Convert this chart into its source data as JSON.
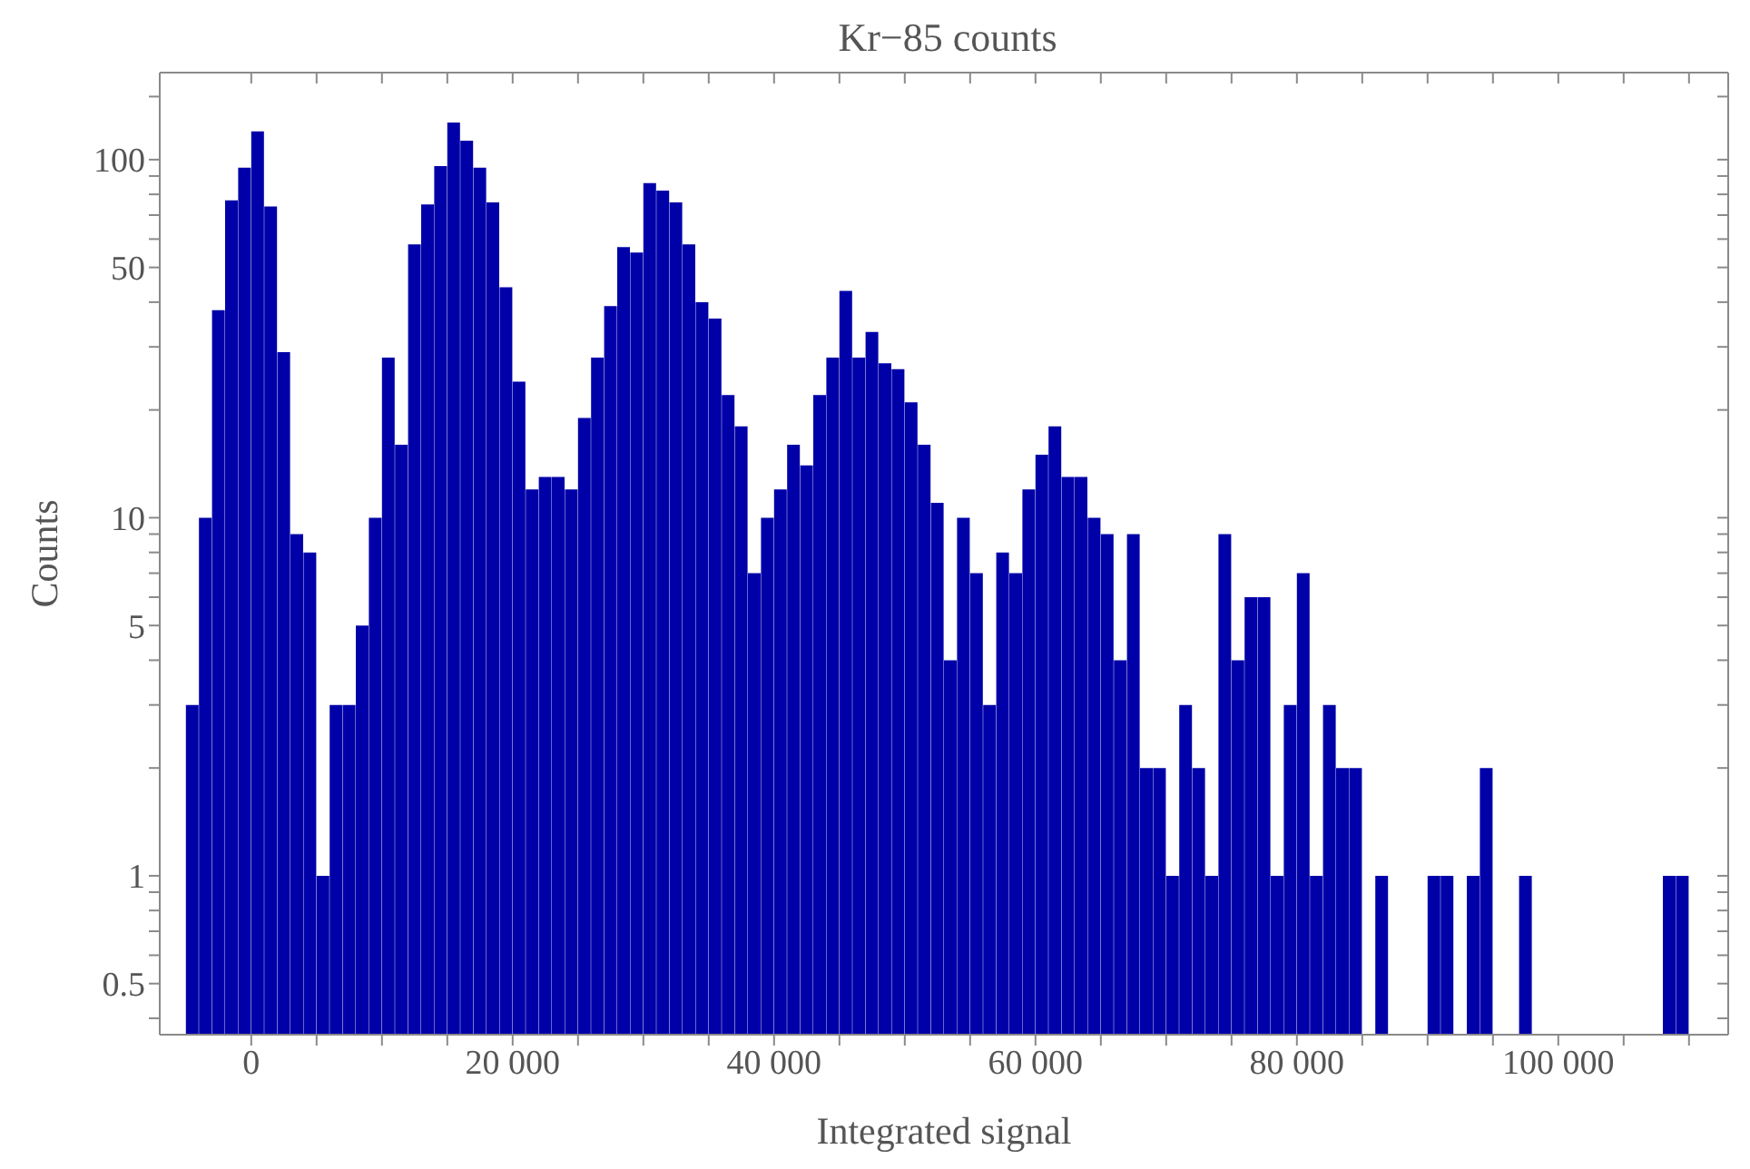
{
  "chart_data": {
    "type": "histogram",
    "title": "Kr−85 counts",
    "xlabel": "Integrated signal",
    "ylabel": "Counts",
    "color": "#0000a8",
    "log": "y",
    "bins": [
      -5000,
      -4000,
      -3000,
      -2000,
      -1000,
      0,
      1000,
      2000,
      3000,
      4000,
      5000,
      6000,
      7000,
      8000,
      9000,
      10000,
      11000,
      12000,
      13000,
      14000,
      15000,
      16000,
      17000,
      18000,
      19000,
      20000,
      21000,
      22000,
      23000,
      24000,
      25000,
      26000,
      27000,
      28000,
      29000,
      30000,
      31000,
      32000,
      33000,
      34000,
      35000,
      36000,
      37000,
      38000,
      39000,
      40000,
      41000,
      42000,
      43000,
      44000,
      45000,
      46000,
      47000,
      48000,
      49000,
      50000,
      51000,
      52000,
      53000,
      54000,
      55000,
      56000,
      57000,
      58000,
      59000,
      60000,
      61000,
      62000,
      63000,
      64000,
      65000,
      66000,
      67000,
      68000,
      69000,
      70000,
      71000,
      72000,
      73000,
      74000,
      75000,
      76000,
      77000,
      78000,
      79000,
      80000,
      81000,
      82000,
      83000,
      84000,
      85000,
      86000,
      87000,
      88000,
      89000,
      90000,
      91000,
      92000,
      93000,
      94000,
      95000,
      96000,
      97000,
      98000,
      99000,
      100000,
      101000,
      102000,
      103000,
      104000,
      105000,
      106000,
      107000,
      108000,
      109000,
      110000
    ],
    "values": [
      3,
      10,
      38,
      77,
      95,
      120,
      74,
      29,
      9,
      8,
      1,
      3,
      3,
      5,
      10,
      28,
      16,
      58,
      75,
      96,
      127,
      113,
      95,
      76,
      44,
      24,
      12,
      13,
      13,
      12,
      19,
      28,
      39,
      57,
      55,
      86,
      82,
      76,
      58,
      40,
      36,
      22,
      18,
      7,
      10,
      12,
      16,
      14,
      22,
      28,
      43,
      28,
      33,
      27,
      26,
      21,
      16,
      11,
      4,
      10,
      7,
      3,
      8,
      7,
      12,
      15,
      18,
      13,
      13,
      10,
      9,
      4,
      9,
      2,
      2,
      1,
      3,
      2,
      1,
      9,
      4,
      6,
      6,
      1,
      3,
      7,
      1,
      3,
      2,
      2,
      null,
      1,
      null,
      null,
      null,
      1,
      1,
      null,
      1,
      2,
      null,
      null,
      1,
      null,
      null,
      null,
      null,
      null,
      null,
      null,
      null,
      null,
      null,
      1,
      1
    ],
    "xlim": [
      -7000,
      113000
    ],
    "xticks": [
      {
        "value": 0,
        "label": "0"
      },
      {
        "value": 5000,
        "label": null
      },
      {
        "value": 10000,
        "label": null
      },
      {
        "value": 15000,
        "label": null
      },
      {
        "value": 20000,
        "label": "20 000"
      },
      {
        "value": 25000,
        "label": null
      },
      {
        "value": 30000,
        "label": null
      },
      {
        "value": 35000,
        "label": null
      },
      {
        "value": 40000,
        "label": "40 000"
      },
      {
        "value": 45000,
        "label": null
      },
      {
        "value": 50000,
        "label": null
      },
      {
        "value": 55000,
        "label": null
      },
      {
        "value": 60000,
        "label": "60 000"
      },
      {
        "value": 65000,
        "label": null
      },
      {
        "value": 70000,
        "label": null
      },
      {
        "value": 75000,
        "label": null
      },
      {
        "value": 80000,
        "label": "80 000"
      },
      {
        "value": 85000,
        "label": null
      },
      {
        "value": 90000,
        "label": null
      },
      {
        "value": 95000,
        "label": null
      },
      {
        "value": 100000,
        "label": "100 000"
      },
      {
        "value": 105000,
        "label": null
      },
      {
        "value": 110000,
        "label": null
      }
    ],
    "ylim": [
      0.36,
      175
    ],
    "yticks": [
      {
        "value": 0.4,
        "label": null
      },
      {
        "value": 0.5,
        "label": "0.5"
      },
      {
        "value": 0.6,
        "label": null
      },
      {
        "value": 0.7,
        "label": null
      },
      {
        "value": 0.8,
        "label": null
      },
      {
        "value": 0.9,
        "label": null
      },
      {
        "value": 1,
        "label": "1"
      },
      {
        "value": 2,
        "label": null
      },
      {
        "value": 3,
        "label": null
      },
      {
        "value": 4,
        "label": null
      },
      {
        "value": 5,
        "label": "5"
      },
      {
        "value": 6,
        "label": null
      },
      {
        "value": 7,
        "label": null
      },
      {
        "value": 8,
        "label": null
      },
      {
        "value": 9,
        "label": null
      },
      {
        "value": 10,
        "label": "10"
      },
      {
        "value": 20,
        "label": null
      },
      {
        "value": 30,
        "label": null
      },
      {
        "value": 40,
        "label": null
      },
      {
        "value": 50,
        "label": "50"
      },
      {
        "value": 60,
        "label": null
      },
      {
        "value": 70,
        "label": null
      },
      {
        "value": 80,
        "label": null
      },
      {
        "value": 90,
        "label": null
      },
      {
        "value": 100,
        "label": "100"
      },
      {
        "value": 150,
        "label": null
      }
    ],
    "grid": false,
    "legend": false
  }
}
